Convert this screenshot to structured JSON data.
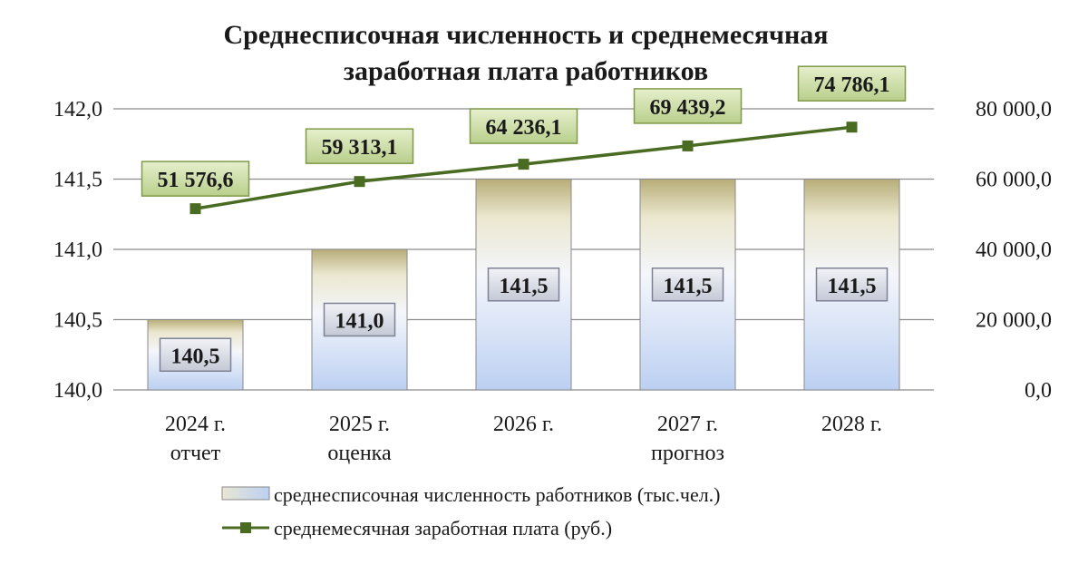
{
  "chart_data": {
    "type": "bar",
    "title_lines": [
      "Среднесписочная численность и среднемесячная",
      "заработная плата работников"
    ],
    "categories": [
      [
        "2024 г.",
        "отчет"
      ],
      [
        "2025 г.",
        "оценка"
      ],
      [
        "2026 г."
      ],
      [
        "2027 г.",
        "прогноз"
      ],
      [
        "2028 г."
      ]
    ],
    "y_left": {
      "range": [
        140.0,
        142.0
      ],
      "ticks": [
        140.0,
        140.5,
        141.0,
        141.5,
        142.0
      ],
      "tick_labels": [
        "140,0",
        "140,5",
        "141,0",
        "141,5",
        "142,0"
      ]
    },
    "y_right": {
      "range": [
        0,
        80000
      ],
      "ticks": [
        0,
        20000,
        40000,
        60000,
        80000
      ],
      "tick_labels": [
        "0,0",
        "20 000,0",
        "40 000,0",
        "60 000,0",
        "80 000,0"
      ]
    },
    "series": [
      {
        "name": "среднесписочная численность работников (тыс.чел.)",
        "type": "bar",
        "axis": "left",
        "values": [
          140.5,
          141.0,
          141.5,
          141.5,
          141.5
        ],
        "labels": [
          "140,5",
          "141,0",
          "141,5",
          "141,5",
          "141,5"
        ]
      },
      {
        "name": "среднемесячная заработная плата (руб.)",
        "type": "line",
        "axis": "right",
        "values": [
          51576.6,
          59313.1,
          64236.1,
          69439.2,
          74786.1
        ],
        "labels": [
          "51 576,6",
          "59 313,1",
          "64 236,1",
          "69 439,2",
          "74 786,1"
        ]
      }
    ],
    "grid": true,
    "legend_position": "bottom",
    "colors": {
      "bar_top": "#c9c093",
      "bar_light": "#f2f2e4",
      "bar_blue": "#c3d3f1",
      "bar_border": "#8a8a8a",
      "line": "#4a6b22",
      "line_label_bg": "#cfe0a8",
      "grid": "#8c8c8c"
    }
  }
}
